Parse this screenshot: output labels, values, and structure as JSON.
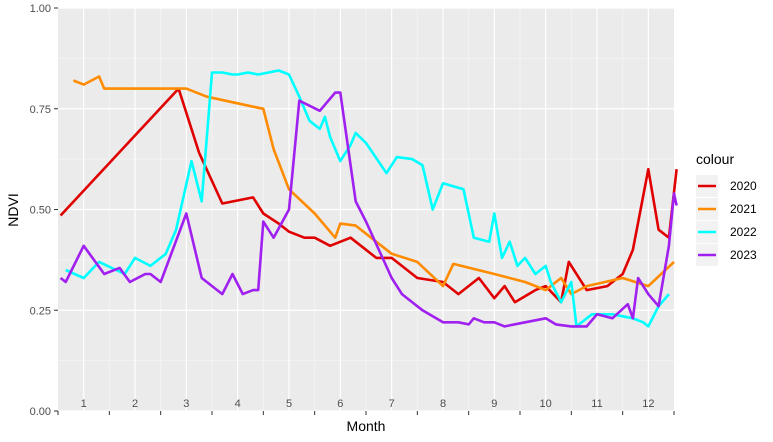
{
  "chart_data": {
    "type": "line",
    "xlabel": "Month",
    "ylabel": "NDVI",
    "xlim": [
      0.5,
      12.5
    ],
    "ylim": [
      0,
      1
    ],
    "x_tick_labels": [
      "1",
      "2",
      "3",
      "4",
      "5",
      "6",
      "7",
      "8",
      "9",
      "10",
      "11",
      "12"
    ],
    "y_ticks": [
      0,
      0.25,
      0.5,
      0.75,
      1
    ],
    "y_tick_labels": [
      "0.00",
      "0.25",
      "0.50",
      "0.75",
      "1.00"
    ],
    "grid": true,
    "legend": {
      "title": "colour",
      "position": "right"
    },
    "series": [
      {
        "name": "2020",
        "color": "#e00000",
        "x": [
          0.55,
          2.85,
          3.25,
          3.7,
          4.3,
          4.5,
          4.8,
          5.0,
          5.3,
          5.5,
          5.8,
          6.2,
          6.7,
          7.0,
          7.5,
          8.0,
          8.3,
          8.7,
          9.0,
          9.2,
          9.4,
          9.8,
          10.0,
          10.3,
          10.45,
          10.8,
          11.2,
          11.5,
          11.7,
          12.0,
          12.2,
          12.4,
          12.55
        ],
        "y": [
          0.485,
          0.8,
          0.64,
          0.515,
          0.53,
          0.49,
          0.465,
          0.445,
          0.43,
          0.43,
          0.41,
          0.43,
          0.38,
          0.38,
          0.33,
          0.32,
          0.29,
          0.33,
          0.28,
          0.31,
          0.27,
          0.3,
          0.31,
          0.27,
          0.37,
          0.3,
          0.31,
          0.34,
          0.4,
          0.6,
          0.45,
          0.43,
          0.6
        ]
      },
      {
        "name": "2021",
        "color": "#ff8c00",
        "x": [
          0.8,
          1.0,
          1.3,
          1.4,
          2.0,
          2.6,
          3.0,
          3.4,
          4.3,
          4.5,
          4.7,
          5.0,
          5.5,
          5.9,
          6.0,
          6.3,
          6.6,
          7.0,
          7.5,
          8.0,
          8.2,
          9.0,
          9.6,
          10.0,
          10.3,
          10.5,
          10.8,
          11.5,
          12.0,
          12.5
        ],
        "y": [
          0.82,
          0.81,
          0.83,
          0.8,
          0.8,
          0.8,
          0.8,
          0.78,
          0.755,
          0.75,
          0.65,
          0.55,
          0.49,
          0.43,
          0.465,
          0.46,
          0.43,
          0.39,
          0.37,
          0.31,
          0.365,
          0.34,
          0.32,
          0.3,
          0.33,
          0.29,
          0.31,
          0.33,
          0.31,
          0.37
        ]
      },
      {
        "name": "2022",
        "color": "#00ffff",
        "x": [
          0.65,
          1.0,
          1.3,
          1.8,
          2.0,
          2.3,
          2.6,
          2.8,
          3.1,
          3.3,
          3.5,
          3.7,
          3.9,
          4.0,
          4.2,
          4.4,
          4.6,
          4.8,
          5.0,
          5.2,
          5.4,
          5.6,
          5.7,
          5.8,
          6.0,
          6.2,
          6.3,
          6.5,
          6.9,
          7.1,
          7.4,
          7.6,
          7.8,
          8.0,
          8.4,
          8.6,
          8.9,
          9.0,
          9.15,
          9.3,
          9.45,
          9.6,
          9.8,
          10.0,
          10.1,
          10.3,
          10.5,
          10.6,
          10.9,
          11.3,
          11.7,
          11.9,
          12.0,
          12.2,
          12.4
        ],
        "y": [
          0.35,
          0.33,
          0.37,
          0.34,
          0.38,
          0.36,
          0.39,
          0.45,
          0.62,
          0.52,
          0.84,
          0.84,
          0.835,
          0.835,
          0.84,
          0.835,
          0.84,
          0.845,
          0.835,
          0.78,
          0.72,
          0.7,
          0.73,
          0.68,
          0.62,
          0.66,
          0.69,
          0.665,
          0.59,
          0.63,
          0.625,
          0.61,
          0.5,
          0.565,
          0.55,
          0.43,
          0.42,
          0.49,
          0.38,
          0.42,
          0.36,
          0.38,
          0.34,
          0.36,
          0.32,
          0.27,
          0.32,
          0.21,
          0.24,
          0.24,
          0.23,
          0.22,
          0.21,
          0.26,
          0.29
        ]
      },
      {
        "name": "2023",
        "color": "#a020f0",
        "x": [
          0.55,
          0.65,
          1.0,
          1.4,
          1.7,
          1.9,
          2.2,
          2.3,
          2.5,
          3.0,
          3.3,
          3.7,
          3.9,
          4.1,
          4.3,
          4.4,
          4.5,
          4.7,
          5.0,
          5.2,
          5.6,
          5.9,
          6.0,
          6.3,
          6.5,
          7.0,
          7.2,
          7.6,
          8.0,
          8.3,
          8.5,
          8.6,
          8.8,
          9.0,
          9.2,
          9.6,
          10.0,
          10.2,
          10.5,
          10.8,
          11.0,
          11.3,
          11.6,
          11.7,
          11.8,
          12.0,
          12.2,
          12.4,
          12.5,
          12.55
        ],
        "y": [
          0.33,
          0.32,
          0.41,
          0.34,
          0.355,
          0.32,
          0.34,
          0.34,
          0.32,
          0.49,
          0.33,
          0.29,
          0.34,
          0.29,
          0.3,
          0.3,
          0.47,
          0.43,
          0.5,
          0.77,
          0.745,
          0.79,
          0.79,
          0.52,
          0.47,
          0.33,
          0.29,
          0.25,
          0.22,
          0.22,
          0.215,
          0.23,
          0.22,
          0.22,
          0.21,
          0.22,
          0.23,
          0.215,
          0.21,
          0.21,
          0.24,
          0.23,
          0.265,
          0.23,
          0.33,
          0.29,
          0.26,
          0.41,
          0.54,
          0.51
        ]
      }
    ]
  }
}
